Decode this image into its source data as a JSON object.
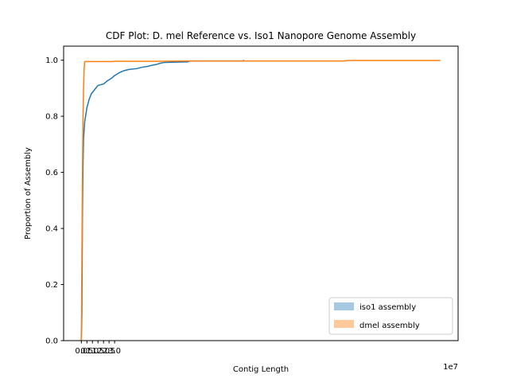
{
  "chart_data": {
    "type": "line",
    "title": "CDF Plot: D. mel Reference vs. Iso1 Nanopore Genome Assembly",
    "xlabel": "Contig Length",
    "ylabel": "Proportion of Assembly",
    "x_offset_label": "1e7",
    "xlim": [
      -1.6,
      34.0
    ],
    "ylim": [
      0.0,
      1.05
    ],
    "x_scale_factor": 10000000,
    "x_ticks": [
      0.0,
      0.5,
      1.0,
      1.5,
      2.0,
      2.5,
      3.0
    ],
    "x_tick_labels": [
      "0.0",
      "0.5",
      "1.0",
      "1.5",
      "2.0",
      "2.5",
      "3.0"
    ],
    "y_ticks": [
      0.0,
      0.2,
      0.4,
      0.6,
      0.8,
      1.0
    ],
    "y_tick_labels": [
      "0.0",
      "0.2",
      "0.4",
      "0.6",
      "0.8",
      "1.0"
    ],
    "legend_position": "lower-right",
    "grid": false,
    "series": [
      {
        "name": "iso1 assembly",
        "color": "#1f77b4",
        "legend_color": "#a6c8e0",
        "points": [
          [
            0.0,
            0.0
          ],
          [
            0.05,
            0.1
          ],
          [
            0.1,
            0.45
          ],
          [
            0.15,
            0.62
          ],
          [
            0.2,
            0.72
          ],
          [
            0.3,
            0.78
          ],
          [
            0.5,
            0.83
          ],
          [
            0.7,
            0.86
          ],
          [
            0.9,
            0.88
          ],
          [
            1.2,
            0.895
          ],
          [
            1.5,
            0.91
          ],
          [
            2.0,
            0.915
          ],
          [
            2.3,
            0.925
          ],
          [
            2.7,
            0.935
          ],
          [
            3.0,
            0.945
          ],
          [
            3.4,
            0.955
          ],
          [
            3.8,
            0.962
          ],
          [
            4.3,
            0.967
          ],
          [
            5.0,
            0.97
          ],
          [
            5.5,
            0.975
          ],
          [
            6.0,
            0.978
          ],
          [
            6.4,
            0.982
          ],
          [
            6.8,
            0.985
          ],
          [
            7.1,
            0.989
          ],
          [
            7.5,
            0.992
          ],
          [
            8.5,
            0.993
          ],
          [
            9.6,
            0.994
          ],
          [
            9.8,
            0.997
          ],
          [
            14.6,
            0.997
          ],
          [
            14.7,
            1.0
          ]
        ]
      },
      {
        "name": "dmel assembly",
        "color": "#ff7f0e",
        "legend_color": "#ffc999",
        "points": [
          [
            0.0,
            0.0
          ],
          [
            0.05,
            0.3
          ],
          [
            0.1,
            0.6
          ],
          [
            0.15,
            0.8
          ],
          [
            0.2,
            0.9
          ],
          [
            0.25,
            0.97
          ],
          [
            0.3,
            0.995
          ],
          [
            2.8,
            0.995
          ],
          [
            3.0,
            0.996
          ],
          [
            7.0,
            0.996
          ],
          [
            9.8,
            0.997
          ],
          [
            23.8,
            0.997
          ],
          [
            24.0,
            0.999
          ],
          [
            32.4,
            0.999
          ]
        ]
      }
    ]
  }
}
